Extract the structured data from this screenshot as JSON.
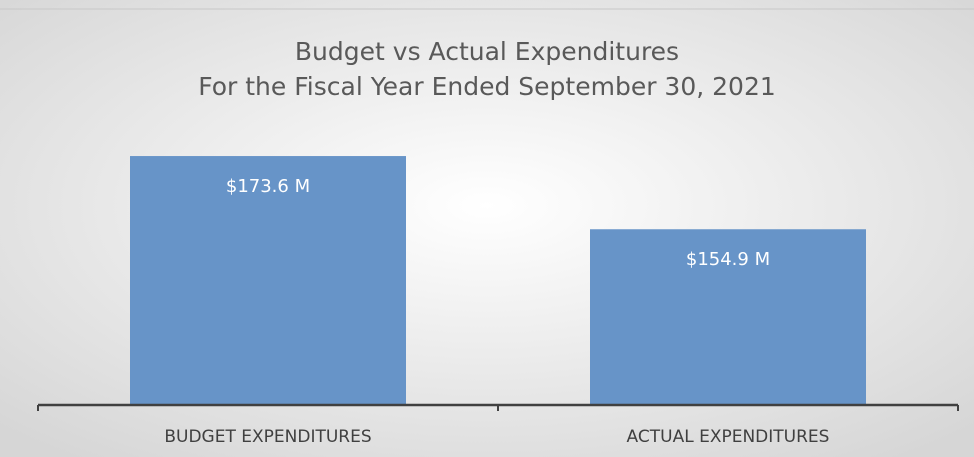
{
  "chart_data": {
    "type": "bar",
    "title": "Budget vs Actual Expenditures",
    "subtitle": "For the Fiscal Year Ended September 30, 2021",
    "categories": [
      "BUDGET EXPENDITURES",
      "ACTUAL EXPENDITURES"
    ],
    "values": [
      173.6,
      154.9
    ],
    "value_labels": [
      "$173.6 M",
      "$154.9 M"
    ],
    "color": "#6794c8",
    "ylim": [
      110,
      180
    ],
    "grid": false
  }
}
